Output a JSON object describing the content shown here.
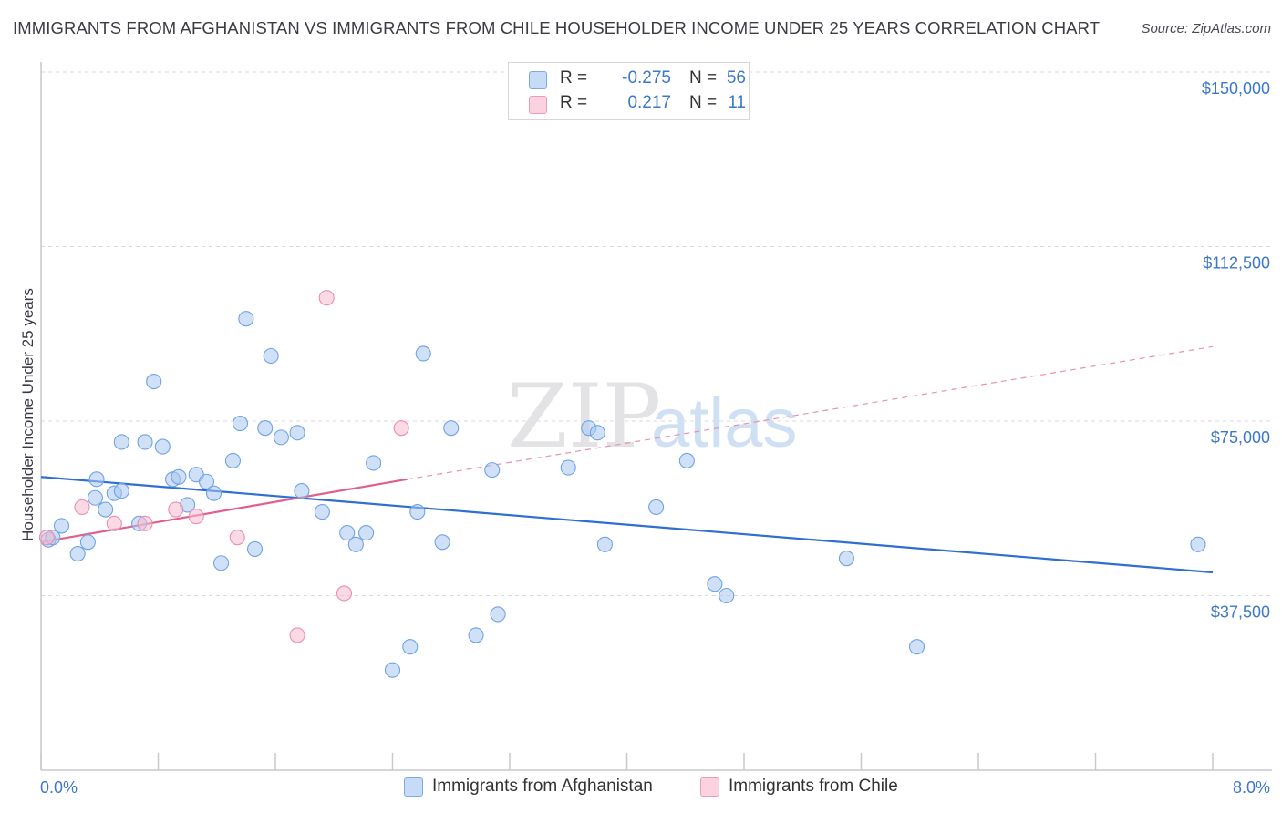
{
  "title": "IMMIGRANTS FROM AFGHANISTAN VS IMMIGRANTS FROM CHILE HOUSEHOLDER INCOME UNDER 25 YEARS CORRELATION CHART",
  "source": "Source: ZipAtlas.com",
  "watermark": {
    "zip": "ZIP",
    "atlas": "atlas"
  },
  "legend": {
    "rows": [
      {
        "r_label": "R =",
        "r_value": "-0.275",
        "n_label": "N =",
        "n_value": "56",
        "color": "#a9c8f0"
      },
      {
        "r_label": "R =",
        "r_value": "0.217",
        "n_label": "N =",
        "n_value": "11",
        "color": "#f7bcd0"
      }
    ]
  },
  "bottom_legend": [
    {
      "label": "Immigrants from Afghanistan",
      "color": "#a9c8f0"
    },
    {
      "label": "Immigrants from Chile",
      "color": "#f7bcd0"
    }
  ],
  "chart_data": {
    "type": "scatter",
    "title": "IMMIGRANTS FROM AFGHANISTAN VS IMMIGRANTS FROM CHILE HOUSEHOLDER INCOME UNDER 25 YEARS CORRELATION CHART",
    "xlabel": "",
    "ylabel": "Householder Income Under 25 years",
    "xlim": [
      0,
      8
    ],
    "ylim": [
      0,
      150000
    ],
    "x_tick_labels": [
      "0.0%",
      "8.0%"
    ],
    "y_ticks": [
      37500,
      75000,
      112500,
      150000
    ],
    "y_tick_labels": [
      "$37,500",
      "$75,000",
      "$112,500",
      "$150,000"
    ],
    "grid": true,
    "legend_position": "top-center",
    "series": [
      {
        "name": "Immigrants from Afghanistan",
        "color": "#6fa3e6",
        "fill": "#a9c8f0",
        "points": [
          [
            0.05,
            49500
          ],
          [
            0.08,
            50000
          ],
          [
            0.14,
            52500
          ],
          [
            0.25,
            46500
          ],
          [
            0.32,
            49000
          ],
          [
            0.37,
            58500
          ],
          [
            0.38,
            62500
          ],
          [
            0.44,
            56000
          ],
          [
            0.5,
            59500
          ],
          [
            0.55,
            60000
          ],
          [
            0.55,
            70500
          ],
          [
            0.67,
            53000
          ],
          [
            0.71,
            70500
          ],
          [
            0.77,
            83500
          ],
          [
            0.83,
            69500
          ],
          [
            0.9,
            62500
          ],
          [
            0.94,
            63000
          ],
          [
            1.0,
            57000
          ],
          [
            1.06,
            63500
          ],
          [
            1.13,
            62000
          ],
          [
            1.18,
            59500
          ],
          [
            1.23,
            44500
          ],
          [
            1.31,
            66500
          ],
          [
            1.36,
            74500
          ],
          [
            1.4,
            97000
          ],
          [
            1.46,
            47500
          ],
          [
            1.53,
            73500
          ],
          [
            1.57,
            89000
          ],
          [
            1.64,
            71500
          ],
          [
            1.75,
            72500
          ],
          [
            1.78,
            60000
          ],
          [
            1.92,
            55500
          ],
          [
            2.09,
            51000
          ],
          [
            2.15,
            48500
          ],
          [
            2.22,
            51000
          ],
          [
            2.27,
            66000
          ],
          [
            2.52,
            26500
          ],
          [
            2.4,
            21500
          ],
          [
            2.57,
            55500
          ],
          [
            2.61,
            89500
          ],
          [
            2.74,
            49000
          ],
          [
            2.8,
            73500
          ],
          [
            2.97,
            29000
          ],
          [
            3.08,
            64500
          ],
          [
            3.12,
            33500
          ],
          [
            3.6,
            65000
          ],
          [
            3.74,
            73500
          ],
          [
            3.8,
            72500
          ],
          [
            3.85,
            48500
          ],
          [
            4.2,
            56500
          ],
          [
            4.41,
            66500
          ],
          [
            4.6,
            40000
          ],
          [
            4.68,
            37500
          ],
          [
            5.5,
            45500
          ],
          [
            5.98,
            26500
          ],
          [
            7.9,
            48500
          ]
        ]
      },
      {
        "name": "Immigrants from Chile",
        "color": "#ea8fae",
        "fill": "#f7bcd0",
        "points": [
          [
            0.04,
            50000
          ],
          [
            0.28,
            56500
          ],
          [
            0.5,
            53000
          ],
          [
            0.71,
            53000
          ],
          [
            0.92,
            56000
          ],
          [
            1.06,
            54500
          ],
          [
            1.34,
            50000
          ],
          [
            1.75,
            29000
          ],
          [
            1.95,
            101500
          ],
          [
            2.07,
            38000
          ],
          [
            2.46,
            73500
          ]
        ]
      }
    ],
    "trend_lines": [
      {
        "series": "Immigrants from Afghanistan",
        "x": [
          0,
          8
        ],
        "y": [
          63000,
          42500
        ],
        "style": "solid",
        "color": "#2f6fd0"
      },
      {
        "series": "Immigrants from Chile",
        "x": [
          0,
          2.5
        ],
        "y": [
          49000,
          62500
        ],
        "style": "solid",
        "color": "#e0608c"
      },
      {
        "series": "Immigrants from Chile",
        "x": [
          2.5,
          8
        ],
        "y": [
          62500,
          91000
        ],
        "style": "dashed",
        "color": "#e892b0"
      }
    ]
  }
}
